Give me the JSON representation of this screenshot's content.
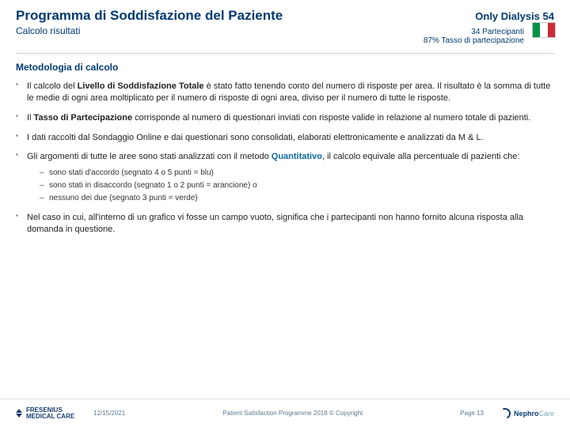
{
  "header": {
    "title": "Programma di Soddisfazione del Paziente",
    "subtitle": "Calcolo risultati",
    "only_dialysis": "Only Dialysis 54",
    "participants": "34 Partecipanti",
    "participation_rate": "87% Tasso di partecipazione"
  },
  "section_title": "Metodologia di calcolo",
  "bullets": {
    "b1_pre": "Il calcolo del ",
    "b1_bold": "Livello di Soddisfazione Totale",
    "b1_post": " è stato fatto tenendo conto del numero di risposte per area. Il risultato è la somma di tutte le medie di ogni area moltiplicato per il numero di risposte di ogni area, diviso per il numero di tutte le risposte.",
    "b2_pre": "Il ",
    "b2_bold": "Tasso di Partecipazione",
    "b2_post": " corrisponde al numero di questionari inviati con risposte valide in relazione al numero totale di pazienti.",
    "b3": "I dati raccolti dal Sondaggio Online e dai questionari sono consolidati, elaborati elettronicamente e analizzati da M & L.",
    "b4_pre": "Gli argomenti di tutte le aree sono stati analizzati con il metodo ",
    "b4_blue": "Quantitativo",
    "b4_post": ", il calcolo equivale alla percentuale di pazienti che:",
    "sub1": "sono stati d'accordo (segnato 4 o 5 punti = blu)",
    "sub2": "sono stati in disaccordo (segnato 1 o 2 punti = arancione) o",
    "sub3": "nessuno dei due (segnato 3 punti = verde)",
    "b5": "Nel caso in cui, all'interno di un grafico vi fosse un campo vuoto, significa che i partecipanti non hanno fornito alcuna risposta alla domanda in questione."
  },
  "footer": {
    "logo_left_top": "FRESENIUS",
    "logo_left_bottom": "MEDICAL CARE",
    "date": "12/15/2021",
    "center": "Patient Satisfaction Programme 2018 © Copyright",
    "page": "Page 13",
    "logo_right_a": "Nephro",
    "logo_right_b": "Care"
  }
}
